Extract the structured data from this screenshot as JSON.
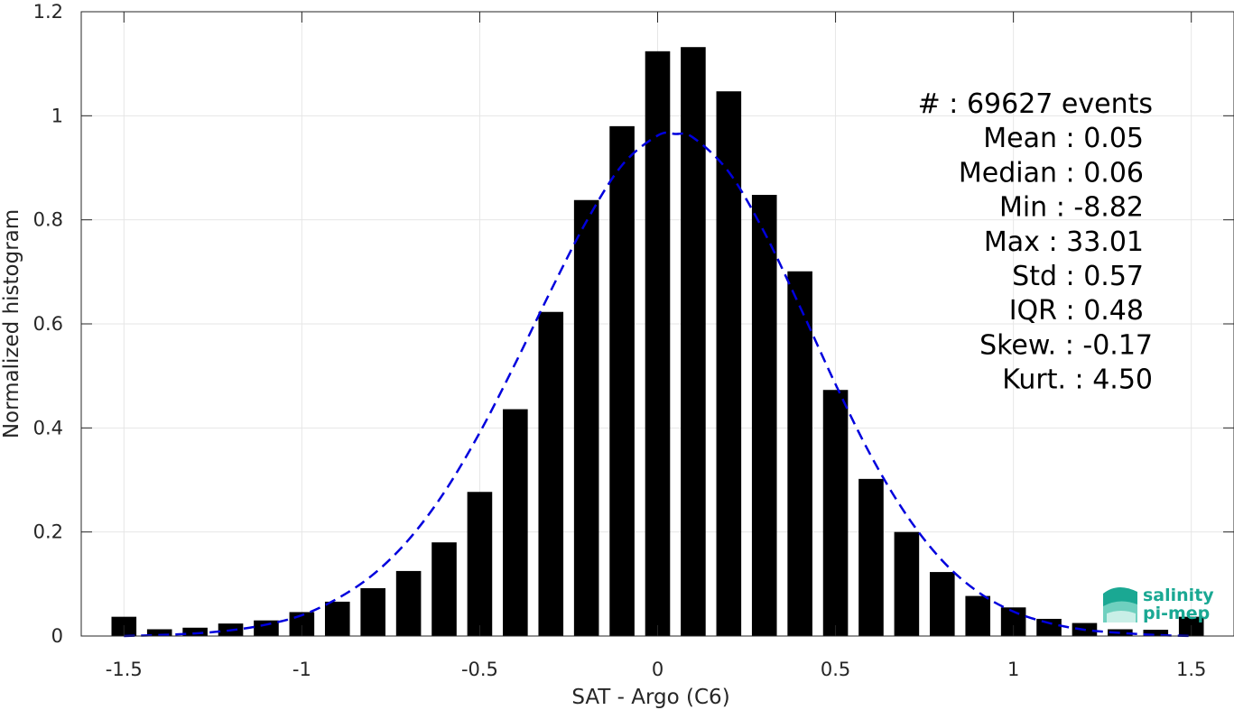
{
  "chart_data": {
    "type": "bar",
    "xlabel": "SAT - Argo (C6)",
    "ylabel": "Normalized histogram",
    "xlim": [
      -1.62,
      1.62
    ],
    "ylim": [
      0,
      1.2
    ],
    "xticks": [
      -1.5,
      -1,
      -0.5,
      0,
      0.5,
      1,
      1.5
    ],
    "xtick_labels": [
      "-1.5",
      "-1",
      "-0.5",
      "0",
      "0.5",
      "1",
      "1.5"
    ],
    "yticks": [
      0,
      0.2,
      0.4,
      0.6,
      0.8,
      1,
      1.2
    ],
    "ytick_labels": [
      "0",
      "0.2",
      "0.4",
      "0.6",
      "0.8",
      "1",
      "1.2"
    ],
    "grid": true,
    "bar_width": 0.07,
    "bars": {
      "x": [
        -1.5,
        -1.4,
        -1.3,
        -1.2,
        -1.1,
        -1.0,
        -0.9,
        -0.8,
        -0.7,
        -0.6,
        -0.5,
        -0.4,
        -0.3,
        -0.2,
        -0.1,
        0.0,
        0.1,
        0.2,
        0.3,
        0.4,
        0.5,
        0.6,
        0.7,
        0.8,
        0.9,
        1.0,
        1.1,
        1.2,
        1.3,
        1.4,
        1.5
      ],
      "values": [
        0.037,
        0.013,
        0.016,
        0.024,
        0.03,
        0.046,
        0.066,
        0.092,
        0.125,
        0.18,
        0.277,
        0.436,
        0.623,
        0.838,
        0.98,
        1.124,
        1.132,
        1.047,
        0.848,
        0.701,
        0.473,
        0.302,
        0.2,
        0.123,
        0.077,
        0.055,
        0.033,
        0.025,
        0.013,
        0.012,
        0.037
      ],
      "color": "#000000"
    },
    "fit_curve": {
      "style": "dashed",
      "color": "#0000dd",
      "x": [
        -1.5,
        -1.4,
        -1.3,
        -1.2,
        -1.1,
        -1.0,
        -0.9,
        -0.8,
        -0.7,
        -0.6,
        -0.5,
        -0.4,
        -0.3,
        -0.2,
        -0.1,
        0.0,
        0.05,
        0.1,
        0.2,
        0.3,
        0.4,
        0.5,
        0.6,
        0.7,
        0.8,
        0.9,
        1.0,
        1.1,
        1.2,
        1.3,
        1.4,
        1.5
      ],
      "values": [
        0.0,
        0.002,
        0.005,
        0.011,
        0.022,
        0.04,
        0.072,
        0.118,
        0.185,
        0.276,
        0.391,
        0.524,
        0.664,
        0.797,
        0.905,
        0.962,
        0.965,
        0.958,
        0.892,
        0.776,
        0.633,
        0.484,
        0.346,
        0.232,
        0.145,
        0.085,
        0.047,
        0.025,
        0.012,
        0.006,
        0.002,
        0.0
      ]
    },
    "stats": [
      "#  : 69627 events",
      "Mean : 0.05",
      "Median : 0.06",
      "Min : -8.82",
      "Max : 33.01",
      "Std : 0.57",
      "IQR : 0.48",
      "Skew. : -0.17",
      "Kurt. : 4.50"
    ]
  },
  "logo": {
    "line1": "salinity",
    "line2": "pi-mep",
    "color": "#1aa893"
  }
}
